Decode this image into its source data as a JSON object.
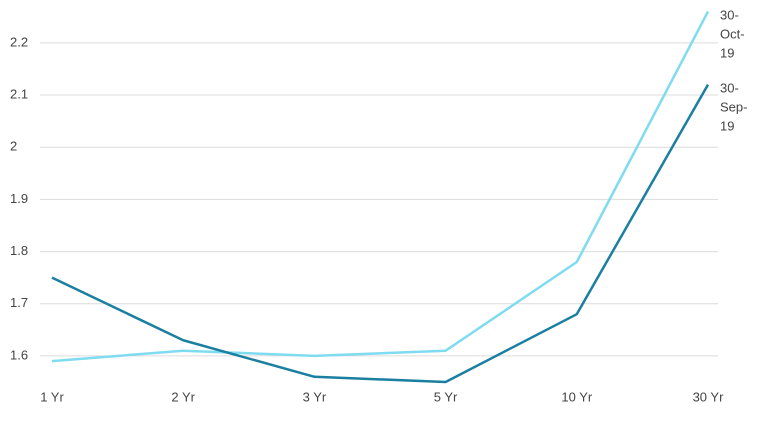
{
  "chart_data": {
    "type": "line",
    "categories": [
      "1 Yr",
      "2 Yr",
      "3 Yr",
      "5 Yr",
      "10 Yr",
      "30 Yr"
    ],
    "series": [
      {
        "name": "30-Oct-19",
        "color": "#7fdcf0",
        "values": [
          1.59,
          1.61,
          1.6,
          1.61,
          1.78,
          2.26
        ]
      },
      {
        "name": "30-Sep-19",
        "color": "#1a7fa0",
        "values": [
          1.75,
          1.63,
          1.56,
          1.55,
          1.68,
          2.12
        ]
      }
    ],
    "ylim": [
      1.55,
      2.263
    ],
    "yticks": [
      1.6,
      1.7,
      1.8,
      1.9,
      2,
      2.1,
      2.2
    ],
    "grid": true
  }
}
